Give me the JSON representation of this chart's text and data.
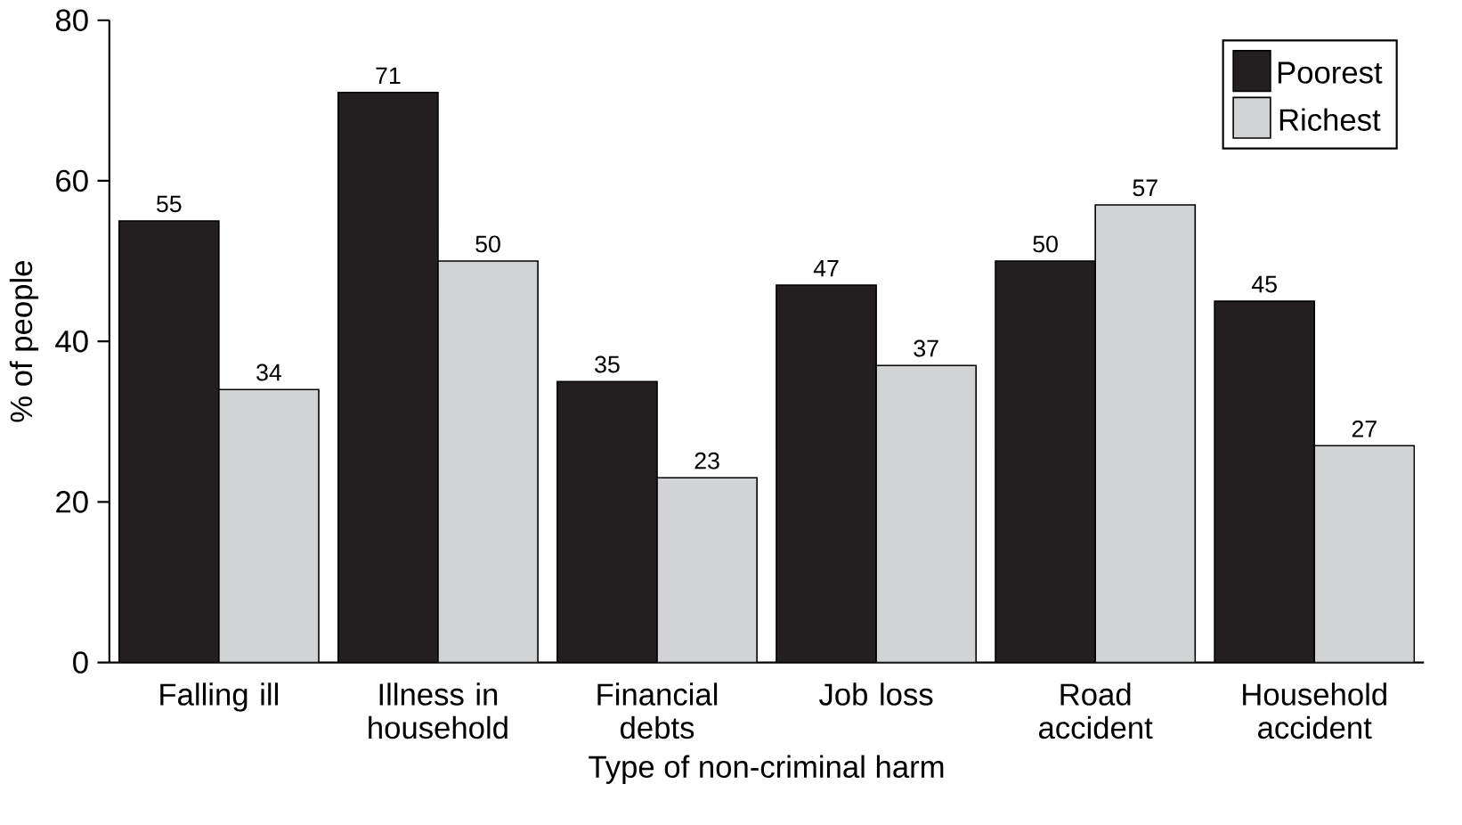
{
  "chart_data": {
    "type": "bar",
    "xlabel": "Type of non-criminal harm",
    "ylabel": "% of people",
    "categories": [
      "Falling ill",
      "Illness in household",
      "Financial debts",
      "Job loss",
      "Road accident",
      "Household accident"
    ],
    "series": [
      {
        "name": "Poorest",
        "color": "#231f20",
        "values": [
          55,
          71,
          35,
          47,
          50,
          45
        ]
      },
      {
        "name": "Richest",
        "color": "#d1d3d4",
        "values": [
          34,
          50,
          23,
          37,
          57,
          27
        ]
      }
    ],
    "ylim": [
      0,
      80
    ],
    "yticks": [
      0,
      20,
      40,
      60,
      80
    ],
    "data_labels": true,
    "legend": "top right",
    "grid": false
  }
}
